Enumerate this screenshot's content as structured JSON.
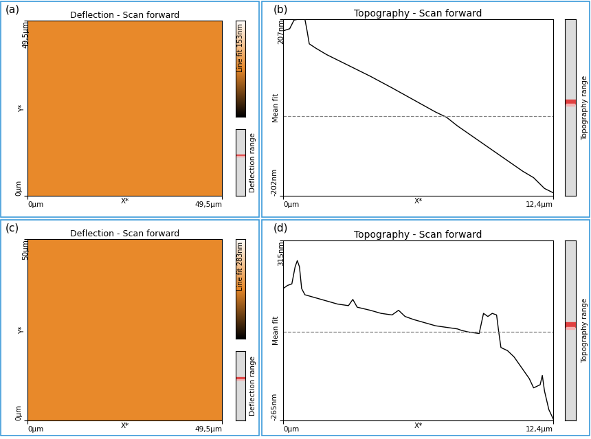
{
  "chart_data": [
    {
      "type": "image",
      "panel_label": "(a)",
      "title": "Deflection - Scan forward",
      "x_label": "X*",
      "y_label": "Y*",
      "color": "#e8892a",
      "xlim": [
        0,
        49.5
      ],
      "ylim": [
        0,
        49.5
      ],
      "xticks": [
        {
          "value": 0,
          "label": "0µm"
        },
        {
          "value": 49.5,
          "label": "49,5µm"
        }
      ],
      "yticks": [
        {
          "value": 0,
          "label": "0µm"
        },
        {
          "value": 49.5,
          "label": "49,5µm"
        }
      ],
      "color_bar_label": "Line fit 153nm",
      "range_label": "Deflection range"
    },
    {
      "type": "line",
      "panel_label": "(b)",
      "title": "Topography - Scan forward",
      "x_label": "X*",
      "y_label": "Mean fit",
      "color": "#000000",
      "xlim": [
        0,
        12.4
      ],
      "ylim": [
        -202,
        207
      ],
      "xticks": [
        {
          "value": 0,
          "label": "0µm"
        },
        {
          "value": 12.4,
          "label": "12,4µm"
        }
      ],
      "yticks": [
        {
          "value": -202,
          "label": "-202nm"
        },
        {
          "value": 207,
          "label": "207nm"
        }
      ],
      "mean": -17,
      "x": [
        0,
        0.3,
        0.5,
        0.7,
        1.0,
        1.1,
        1.2,
        1.5,
        2,
        3,
        4,
        5,
        6,
        7,
        7.5,
        8,
        9,
        10,
        11,
        11.5,
        12,
        12.4
      ],
      "values": [
        180,
        185,
        205,
        207,
        207,
        180,
        150,
        140,
        125,
        100,
        75,
        48,
        20,
        -8,
        -20,
        -40,
        -75,
        -110,
        -145,
        -160,
        -185,
        -195
      ],
      "range_label": "Topography range"
    },
    {
      "type": "image",
      "panel_label": "(c)",
      "title": "Deflection - Scan forward",
      "x_label": "X*",
      "y_label": "Y*",
      "color": "#e8892a",
      "xlim": [
        0,
        49.5
      ],
      "ylim": [
        0,
        50
      ],
      "xticks": [
        {
          "value": 0,
          "label": "0µm"
        },
        {
          "value": 49.5,
          "label": "49,5µm"
        }
      ],
      "yticks": [
        {
          "value": 0,
          "label": "0µm"
        },
        {
          "value": 50,
          "label": "50µm"
        }
      ],
      "color_bar_label": "Line fit 283nm",
      "range_label": "Deflection range"
    },
    {
      "type": "line",
      "panel_label": "(d)",
      "title": "Topography - Scan forward",
      "x_label": "X*",
      "y_label": "Mean fit",
      "color": "#000000",
      "xlim": [
        0,
        12.4
      ],
      "ylim": [
        -265,
        315
      ],
      "xticks": [
        {
          "value": 0,
          "label": "0µm"
        },
        {
          "value": 12.4,
          "label": "12,4µm"
        }
      ],
      "yticks": [
        {
          "value": -265,
          "label": "-265nm"
        },
        {
          "value": 315,
          "label": "315nm"
        }
      ],
      "mean": 20,
      "x": [
        0,
        0.2,
        0.4,
        0.55,
        0.65,
        0.75,
        0.85,
        1.0,
        1.5,
        2,
        2.5,
        3.0,
        3.2,
        3.4,
        4,
        4.5,
        5.0,
        5.3,
        5.6,
        6,
        6.5,
        7,
        7.5,
        8,
        8.2,
        8.5,
        9.0,
        9.2,
        9.4,
        9.6,
        9.8,
        9.9,
        10,
        10.3,
        10.6,
        11,
        11.3,
        11.5,
        11.8,
        11.9,
        12.0,
        12.2,
        12.4
      ],
      "values": [
        160,
        170,
        175,
        230,
        250,
        230,
        160,
        140,
        130,
        120,
        110,
        105,
        125,
        100,
        90,
        80,
        75,
        90,
        70,
        60,
        50,
        40,
        35,
        30,
        25,
        20,
        15,
        80,
        70,
        80,
        75,
        20,
        -30,
        -40,
        -60,
        -100,
        -130,
        -160,
        -150,
        -120,
        -170,
        -230,
        -260
      ],
      "range_label": "Topography range"
    }
  ]
}
